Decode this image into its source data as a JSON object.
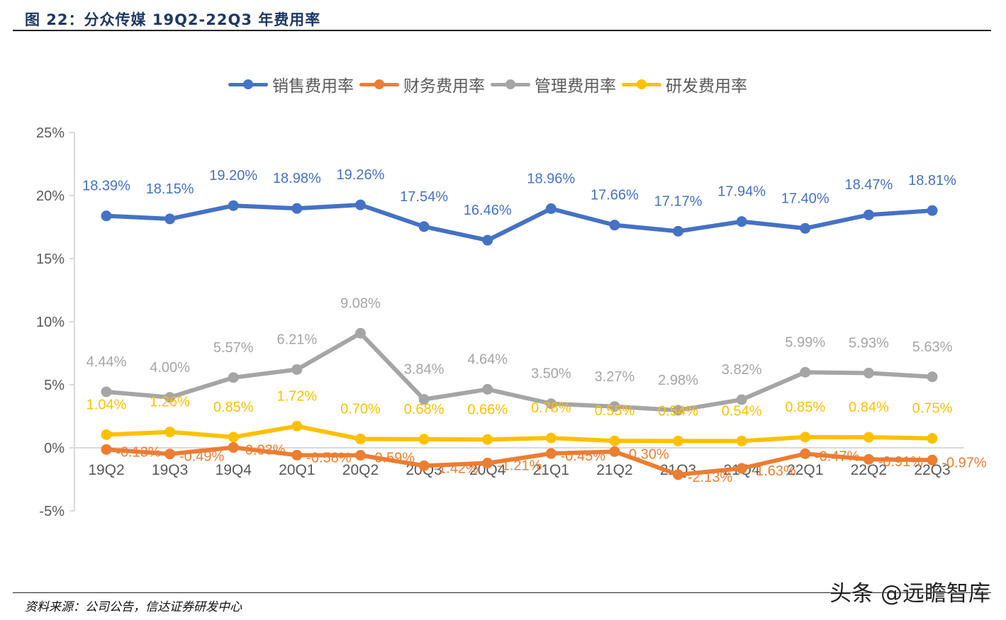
{
  "figure": {
    "title": "图 22：分众传媒 19Q2-22Q3 年费用率",
    "source": "资料来源：公司公告，信达证券研发中心",
    "watermark": "头条 @远瞻智库"
  },
  "chart_data": {
    "type": "line",
    "title": "分众传媒 19Q2-22Q3 年费用率",
    "xlabel": "",
    "ylabel": "",
    "categories": [
      "19Q2",
      "19Q3",
      "19Q4",
      "20Q1",
      "20Q2",
      "20Q3",
      "20Q4",
      "21Q1",
      "21Q2",
      "21Q3",
      "21Q4",
      "22Q1",
      "22Q2",
      "22Q3"
    ],
    "ylim": [
      -5,
      25
    ],
    "yticks": [
      25,
      20,
      15,
      10,
      5,
      0,
      -5
    ],
    "ytick_labels": [
      "25%",
      "20%",
      "15%",
      "10%",
      "5%",
      "0%",
      "-5%"
    ],
    "grid": false,
    "legend_position": "top",
    "series": [
      {
        "name": "销售费用率",
        "color": "#4472c4",
        "values": [
          18.39,
          18.15,
          19.2,
          18.98,
          19.26,
          17.54,
          16.46,
          18.96,
          17.66,
          17.17,
          17.94,
          17.4,
          18.47,
          18.81
        ],
        "labels": [
          "18.39%",
          "18.15%",
          "19.20%",
          "18.98%",
          "19.26%",
          "17.54%",
          "16.46%",
          "18.96%",
          "17.66%",
          "17.17%",
          "17.94%",
          "17.40%",
          "18.47%",
          "18.81%"
        ]
      },
      {
        "name": "财务费用率",
        "color": "#ed7d31",
        "values": [
          -0.13,
          -0.49,
          0.03,
          -0.58,
          -0.59,
          -1.42,
          -1.21,
          -0.45,
          -0.3,
          -2.13,
          -1.63,
          -0.47,
          -0.91,
          -0.97
        ],
        "labels": [
          "-0.13%",
          "-0.49%",
          "0.03%",
          "-0.58%",
          "-0.59%",
          "-1.42%",
          "-1.21%",
          "-0.45%",
          "-0.30%",
          "-2.13%",
          "-1.63%",
          "-0.47%",
          "-0.91%",
          "-0.97%"
        ]
      },
      {
        "name": "管理费用率",
        "color": "#a5a5a5",
        "values": [
          4.44,
          4.0,
          5.57,
          6.21,
          9.08,
          3.84,
          4.64,
          3.5,
          3.27,
          2.98,
          3.82,
          5.99,
          5.93,
          5.63
        ],
        "labels": [
          "4.44%",
          "4.00%",
          "5.57%",
          "6.21%",
          "9.08%",
          "3.84%",
          "4.64%",
          "3.50%",
          "3.27%",
          "2.98%",
          "3.82%",
          "5.99%",
          "5.93%",
          "5.63%"
        ]
      },
      {
        "name": "研发费用率",
        "color": "#ffc000",
        "values": [
          1.04,
          1.26,
          0.85,
          1.72,
          0.7,
          0.68,
          0.66,
          0.78,
          0.55,
          0.54,
          0.54,
          0.85,
          0.84,
          0.75
        ],
        "labels": [
          "1.04%",
          "1.26%",
          "0.85%",
          "1.72%",
          "0.70%",
          "0.68%",
          "0.66%",
          "0.78%",
          "0.55%",
          "0.54%",
          "0.54%",
          "0.85%",
          "0.84%",
          "0.75%"
        ]
      }
    ]
  }
}
